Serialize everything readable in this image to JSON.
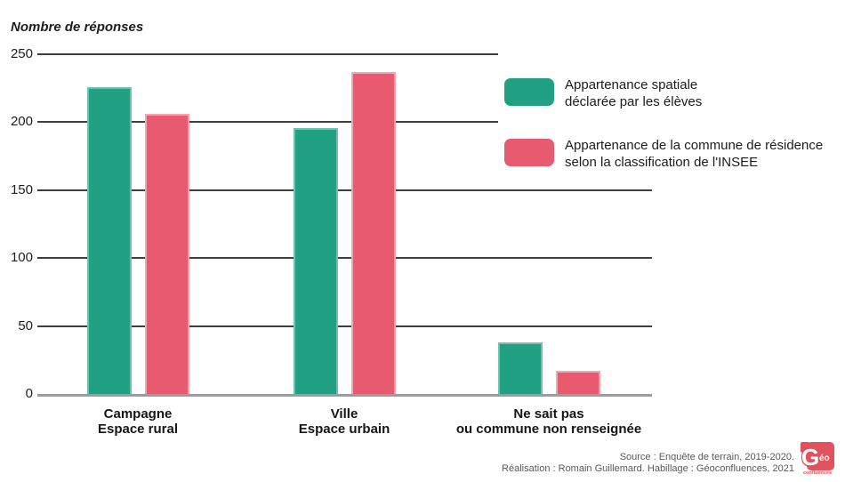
{
  "chart_data": {
    "type": "bar",
    "title": "Nombre de réponses",
    "ylabel": "Nombre de réponses",
    "xlabel": "",
    "categories_lines": [
      [
        "Campagne",
        "Espace rural"
      ],
      [
        "Ville",
        "Espace urbain"
      ],
      [
        "Ne sait pas",
        "ou commune non renseignée"
      ]
    ],
    "series": [
      {
        "key": "declaree-eleves",
        "name": "Appartenance spatiale déclarée par les élèves",
        "color": "#21A083",
        "border_color": "#71C2AC",
        "values": [
          226,
          196,
          38
        ]
      },
      {
        "key": "classification-insee",
        "name": "Appartenance de la commune de résidence selon la classification de l'INSEE",
        "color": "#E85A6E",
        "border_color": "#F3A6B2",
        "values": [
          206,
          237,
          17
        ]
      }
    ],
    "ylim": [
      0,
      250
    ],
    "yticks": [
      0,
      50,
      100,
      150,
      200,
      250
    ],
    "grid": true,
    "legend_position": "top-right",
    "gridline_color": "#3E3E3E",
    "axis_color": "#9C9C9C"
  },
  "legend": {
    "items": [
      {
        "label_lines": [
          "Appartenance spatiale",
          "déclarée par les élèves"
        ],
        "color": "#21A083"
      },
      {
        "label_lines": [
          "Appartenance de la commune de résidence",
          "selon la classification de l'INSEE"
        ],
        "color": "#E85A6E"
      }
    ]
  },
  "source": {
    "line1": "Source : Enquête de terrain, 2019-2020.",
    "line2": "Réalisation : Romain Guillemard. Habillage : Géoconfluences, 2021"
  },
  "logo": {
    "g": "G",
    "eo": "éo",
    "confluences": "confluences",
    "color": "#E0535E"
  }
}
